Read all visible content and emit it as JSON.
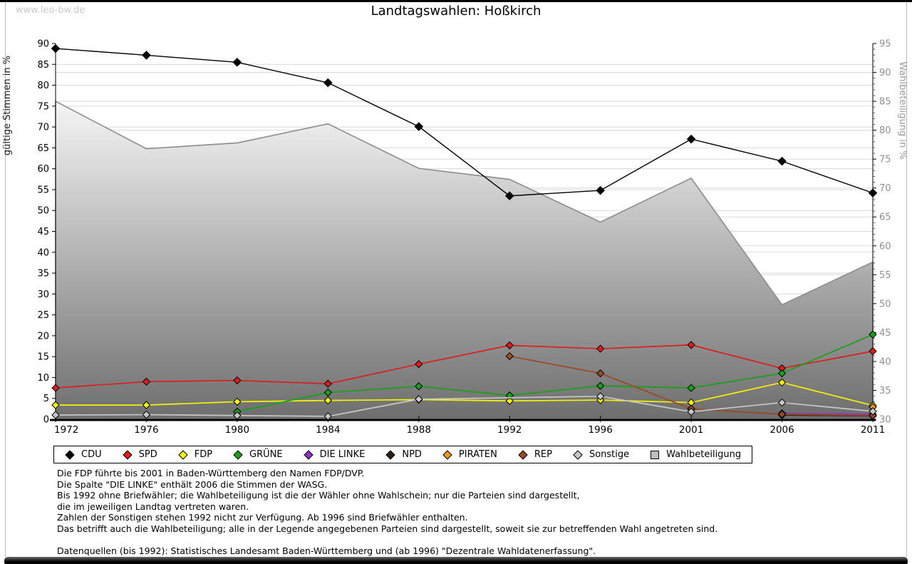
{
  "page": {
    "watermark": "www.leo-bw.de",
    "title": "Landtagswahlen: Hoßkirch"
  },
  "chart_data": {
    "type": "line",
    "title": "Landtagswahlen: Hoßkirch",
    "x_categories": [
      "1972",
      "1976",
      "1980",
      "1984",
      "1988",
      "1992",
      "1996",
      "2001",
      "2006",
      "2011"
    ],
    "left_axis": {
      "label": "gültige Stimmen in %",
      "min": 0,
      "max": 90,
      "tick_step": 5
    },
    "right_axis": {
      "label": "Wahlbeteiligung in %",
      "min": 30,
      "max": 95,
      "tick_step": 5
    },
    "grid": true,
    "legend_position": "bottom",
    "area_series": {
      "name": "Wahlbeteiligung",
      "axis": "right",
      "values": [
        85.0,
        76.8,
        77.8,
        81.1,
        73.4,
        71.5,
        64.1,
        71.7,
        49.8,
        57.2
      ],
      "fill_top": "#f6f6f6",
      "fill_bottom": "#6e6e6e",
      "stroke": "#8c8c8c"
    },
    "series": [
      {
        "name": "CDU",
        "color": "#000000",
        "values": [
          88.8,
          87.2,
          85.5,
          80.6,
          70.1,
          53.5,
          54.8,
          67.1,
          61.8,
          54.2
        ]
      },
      {
        "name": "SPD",
        "color": "#dd1c1c",
        "values": [
          7.5,
          9.0,
          9.3,
          8.5,
          13.2,
          17.7,
          16.9,
          17.8,
          12.2,
          16.3
        ]
      },
      {
        "name": "FDP",
        "color": "#f5f500",
        "values": [
          3.4,
          3.4,
          4.2,
          4.5,
          4.7,
          4.4,
          4.6,
          4.0,
          8.8,
          3.3
        ]
      },
      {
        "name": "GRÜNE",
        "color": "#18a018",
        "values": [
          null,
          null,
          1.8,
          6.4,
          7.9,
          5.7,
          8.0,
          7.5,
          11.0,
          20.3
        ]
      },
      {
        "name": "DIE LINKE",
        "color": "#8c32c8",
        "values": [
          null,
          null,
          null,
          null,
          null,
          null,
          null,
          null,
          1.4,
          1.2
        ]
      },
      {
        "name": "NPD",
        "color": "#32200e",
        "values": [
          null,
          null,
          null,
          null,
          null,
          null,
          null,
          null,
          1.0,
          0.8
        ]
      },
      {
        "name": "PIRATEN",
        "color": "#f0941e",
        "values": [
          null,
          null,
          null,
          null,
          null,
          null,
          null,
          null,
          null,
          2.9
        ]
      },
      {
        "name": "REP",
        "color": "#9a4a22",
        "values": [
          null,
          null,
          null,
          null,
          null,
          15.1,
          11.0,
          2.5,
          1.2,
          0.9
        ]
      },
      {
        "name": "Sonstige",
        "color": "#c8c8c8",
        "values": [
          1.0,
          1.1,
          0.9,
          0.7,
          4.8,
          null,
          5.5,
          1.8,
          4.0,
          1.9
        ]
      }
    ]
  },
  "legend": {
    "items": [
      {
        "label": "CDU",
        "color": "#000000",
        "shape": "diamond"
      },
      {
        "label": "SPD",
        "color": "#dd1c1c",
        "shape": "diamond"
      },
      {
        "label": "FDP",
        "color": "#f5f500",
        "shape": "diamond"
      },
      {
        "label": "GRÜNE",
        "color": "#18a018",
        "shape": "diamond"
      },
      {
        "label": "DIE LINKE",
        "color": "#8c32c8",
        "shape": "diamond"
      },
      {
        "label": "NPD",
        "color": "#32200e",
        "shape": "diamond"
      },
      {
        "label": "PIRATEN",
        "color": "#f0941e",
        "shape": "diamond"
      },
      {
        "label": "REP",
        "color": "#9a4a22",
        "shape": "diamond"
      },
      {
        "label": "Sonstige",
        "color": "#c8c8c8",
        "shape": "diamond"
      },
      {
        "label": "Wahlbeteiligung",
        "color": "#bdbdbd",
        "shape": "square"
      }
    ]
  },
  "footnotes": {
    "lines": [
      "Die FDP führte bis 2001 in Baden-Württemberg den Namen FDP/DVP.",
      "Die Spalte \"DIE LINKE\" enthält 2006 die Stimmen der WASG.",
      "Bis 1992 ohne Briefwähler; die Wahlbeteiligung ist die der Wähler ohne Wahlschein; nur die Parteien sind dargestellt,",
      "die im jeweiligen Landtag vertreten waren.",
      "Zahlen der Sonstigen stehen 1992 nicht zur Verfügung. Ab 1996 sind Briefwähler enthalten.",
      "Das betrifft auch die Wahlbeteiligung; alle in der Legende angegebenen Parteien sind dargestellt, soweit sie zur betreffenden Wahl angetreten sind.",
      "",
      "Datenquellen (bis 1992): Statistisches Landesamt Baden-Württemberg und (ab 1996) \"Dezentrale Wahldatenerfassung\"."
    ]
  }
}
